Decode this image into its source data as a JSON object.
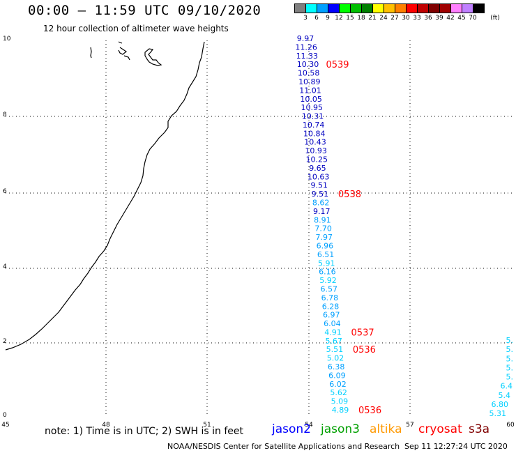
{
  "header": {
    "title": "00:00 – 11:59 UTC 09/10/2020",
    "subtitle": "12 hour collection of altimeter wave heights"
  },
  "legend": {
    "unit": "(ft)",
    "bins": [
      {
        "label": "3",
        "color": "#808080"
      },
      {
        "label": "6",
        "color": "#00ffff"
      },
      {
        "label": "9",
        "color": "#00a0ff"
      },
      {
        "label": "12",
        "color": "#0000ff"
      },
      {
        "label": "15",
        "color": "#00ff00"
      },
      {
        "label": "18",
        "color": "#00c000"
      },
      {
        "label": "21",
        "color": "#008000"
      },
      {
        "label": "24",
        "color": "#ffff00"
      },
      {
        "label": "27",
        "color": "#ffc000"
      },
      {
        "label": "30",
        "color": "#ff8000"
      },
      {
        "label": "33",
        "color": "#ff0000"
      },
      {
        "label": "36",
        "color": "#c00000"
      },
      {
        "label": "39",
        "color": "#800000"
      },
      {
        "label": "42",
        "color": "#a00000"
      },
      {
        "label": "45",
        "color": "#ff80ff"
      },
      {
        "label": "70",
        "color": "#c080ff"
      },
      {
        "label": "",
        "color": "#000000"
      }
    ]
  },
  "axes": {
    "x_ticks": [
      "45",
      "48",
      "51",
      "54",
      "57",
      "60"
    ],
    "y_ticks": [
      "0",
      "2",
      "4",
      "6",
      "8",
      "10"
    ]
  },
  "tracks": {
    "main": {
      "points": [
        {
          "value": "9.97",
          "color": "#0000c0"
        },
        {
          "value": "11.26",
          "color": "#0000c0"
        },
        {
          "value": "11.33",
          "color": "#0000c0"
        },
        {
          "value": "10.30",
          "color": "#0000c0"
        },
        {
          "value": "10.58",
          "color": "#0000c0"
        },
        {
          "value": "10.89",
          "color": "#0000c0"
        },
        {
          "value": "11.01",
          "color": "#0000c0"
        },
        {
          "value": "10.05",
          "color": "#0000c0"
        },
        {
          "value": "10.95",
          "color": "#0000c0"
        },
        {
          "value": "10.31",
          "color": "#0000c0"
        },
        {
          "value": "10.74",
          "color": "#0000c0"
        },
        {
          "value": "10.84",
          "color": "#0000c0"
        },
        {
          "value": "10.43",
          "color": "#0000c0"
        },
        {
          "value": "10.93",
          "color": "#0000c0"
        },
        {
          "value": "10.25",
          "color": "#0000c0"
        },
        {
          "value": "9.65",
          "color": "#0000c0"
        },
        {
          "value": "10.63",
          "color": "#0000c0"
        },
        {
          "value": "9.51",
          "color": "#0000c0"
        },
        {
          "value": "9.51",
          "color": "#0000c0"
        },
        {
          "value": "8.62",
          "color": "#00a0ff"
        },
        {
          "value": "9.17",
          "color": "#0000c0"
        },
        {
          "value": "8.91",
          "color": "#00a0ff"
        },
        {
          "value": "7.70",
          "color": "#00a0ff"
        },
        {
          "value": "7.97",
          "color": "#00a0ff"
        },
        {
          "value": "6.96",
          "color": "#00a0ff"
        },
        {
          "value": "6.51",
          "color": "#00a0ff"
        },
        {
          "value": "5.91",
          "color": "#00d0ff"
        },
        {
          "value": "6.16",
          "color": "#00a0ff"
        },
        {
          "value": "5.92",
          "color": "#00d0ff"
        },
        {
          "value": "6.57",
          "color": "#00a0ff"
        },
        {
          "value": "6.78",
          "color": "#00a0ff"
        },
        {
          "value": "6.28",
          "color": "#00a0ff"
        },
        {
          "value": "6.97",
          "color": "#00a0ff"
        },
        {
          "value": "6.04",
          "color": "#00a0ff"
        },
        {
          "value": "4.91",
          "color": "#00d0ff"
        },
        {
          "value": "5.67",
          "color": "#00d0ff"
        },
        {
          "value": "5.51",
          "color": "#00d0ff"
        },
        {
          "value": "5.02",
          "color": "#00d0ff"
        },
        {
          "value": "6.38",
          "color": "#00a0ff"
        },
        {
          "value": "6.09",
          "color": "#00a0ff"
        },
        {
          "value": "6.02",
          "color": "#00a0ff"
        },
        {
          "value": "5.62",
          "color": "#00d0ff"
        },
        {
          "value": "5.09",
          "color": "#00d0ff"
        },
        {
          "value": "4.89",
          "color": "#00d0ff"
        }
      ],
      "times": [
        "0539",
        "0538",
        "0537",
        "0536",
        "0536"
      ]
    },
    "edge": {
      "points": [
        "5.",
        "5.",
        "5.",
        "5.",
        "5.",
        "6.4",
        "5.4",
        "6.80",
        "5.31"
      ]
    }
  },
  "note": "note:  1) Time is in UTC;  2) SWH is in feet",
  "satellites": [
    {
      "name": "jason2",
      "color": "#0000ff"
    },
    {
      "name": "jason3",
      "color": "#00a000"
    },
    {
      "name": "altika",
      "color": "#ff9900"
    },
    {
      "name": "cryosat",
      "color": "#ff0000"
    },
    {
      "name": "s3a",
      "color": "#800000"
    }
  ],
  "footer": {
    "credit": "NOAA/NESDIS Center for Satellite Applications and Research",
    "timestamp": "Sep 11 12:27:24 UTC 2020"
  }
}
